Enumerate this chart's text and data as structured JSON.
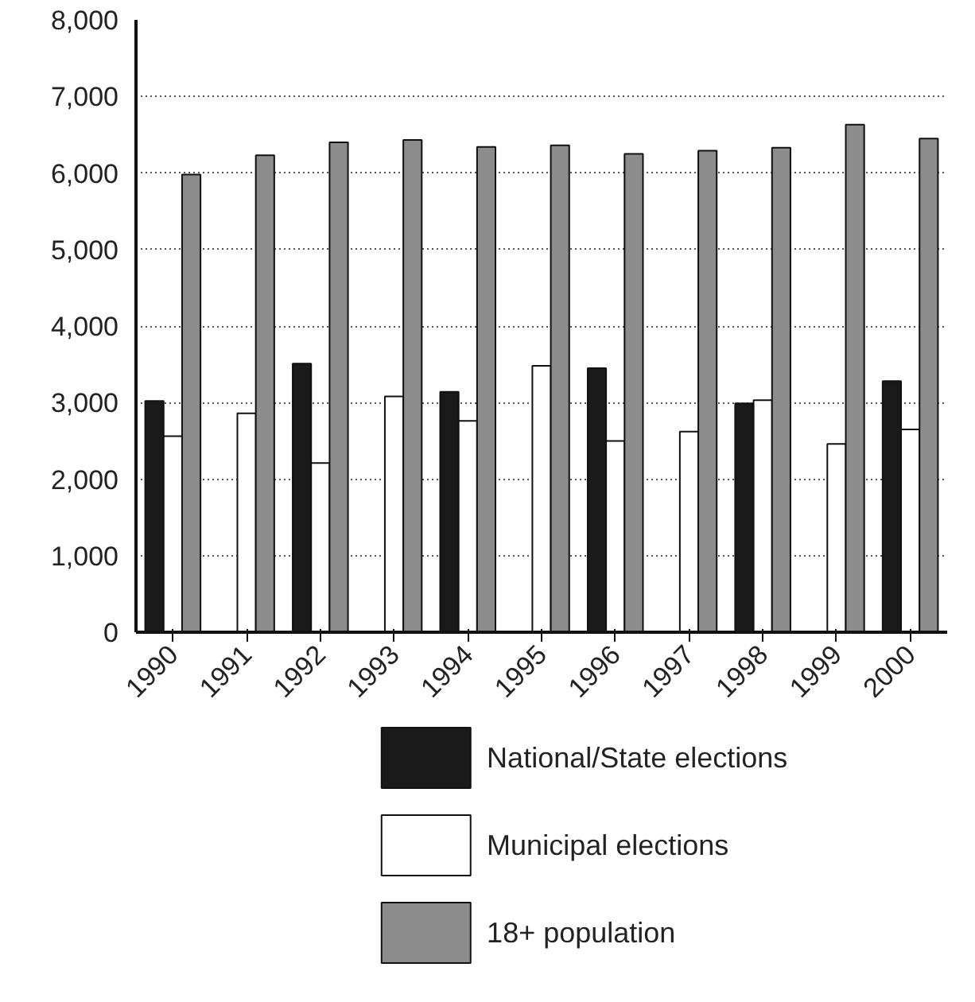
{
  "chart_data": {
    "type": "bar",
    "categories": [
      "1990",
      "1991",
      "1992",
      "1993",
      "1994",
      "1995",
      "1996",
      "1997",
      "1998",
      "1999",
      "2000"
    ],
    "series": [
      {
        "name": "National/State elections",
        "color": "#1a1a1a",
        "values": [
          3020,
          null,
          3510,
          null,
          3140,
          null,
          3450,
          null,
          2990,
          null,
          3280
        ]
      },
      {
        "name": "Municipal elections",
        "color": "#ffffff",
        "values": [
          2560,
          2860,
          2210,
          3080,
          2760,
          3480,
          2500,
          2620,
          3030,
          2460,
          2650
        ]
      },
      {
        "name": "18+ population",
        "color": "#8c8c8c",
        "values": [
          5980,
          6230,
          6400,
          6430,
          6340,
          6360,
          6250,
          6290,
          6330,
          6630,
          6450
        ]
      }
    ],
    "ylim": [
      0,
      8000
    ],
    "yticks": [
      {
        "value": 0,
        "label": "0"
      },
      {
        "value": 1000,
        "label": "1,000"
      },
      {
        "value": 2000,
        "label": "2,000"
      },
      {
        "value": 3000,
        "label": "3,000"
      },
      {
        "value": 4000,
        "label": "4,000"
      },
      {
        "value": 5000,
        "label": "5,000"
      },
      {
        "value": 6000,
        "label": "6,000"
      },
      {
        "value": 7000,
        "label": "7,000"
      },
      {
        "value": 8000,
        "label": "8,000"
      }
    ],
    "grid": "y",
    "legend": "bottom"
  }
}
